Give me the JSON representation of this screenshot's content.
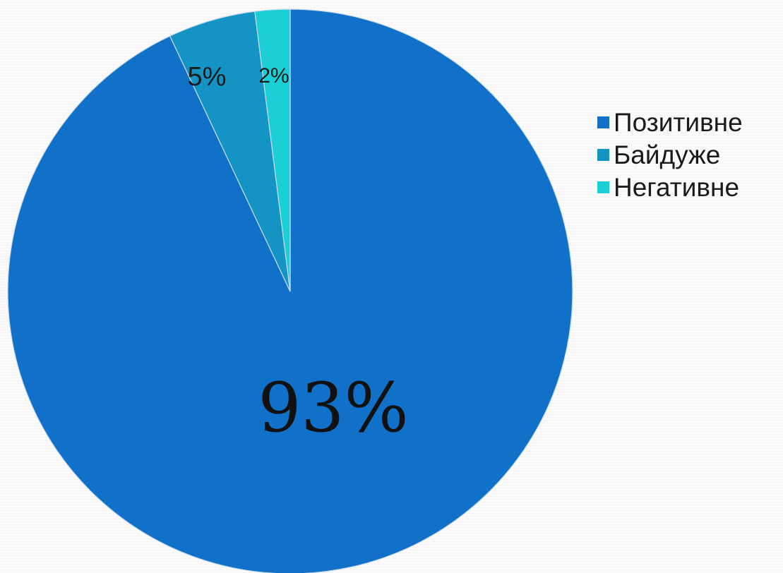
{
  "chart_data": {
    "type": "pie",
    "categories": [
      "Позитивне",
      "Байдуже",
      "Негативне"
    ],
    "values": [
      93,
      5,
      2
    ],
    "data_labels": [
      "93%",
      "5%",
      "2%"
    ],
    "colors": [
      "#1170c8",
      "#1494c5",
      "#1ccfd6"
    ],
    "start_angle": "12 o'clock",
    "direction": "counter-clockwise",
    "legend_position": "right"
  }
}
